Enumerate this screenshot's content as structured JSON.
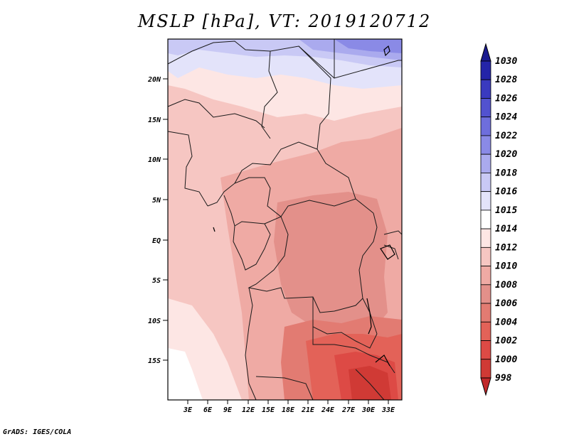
{
  "title": "MSLP [hPa], VT: 2019120712",
  "footer": "GrADS: IGES/COLA",
  "map": {
    "lon_labels": [
      "3E",
      "6E",
      "9E",
      "12E",
      "15E",
      "18E",
      "21E",
      "24E",
      "27E",
      "30E",
      "33E"
    ],
    "lat_labels": [
      "20N",
      "15N",
      "10N",
      "5N",
      "EQ",
      "5S",
      "10S",
      "15S"
    ]
  },
  "colorbar": {
    "levels": [
      "998",
      "1000",
      "1002",
      "1004",
      "1006",
      "1008",
      "1010",
      "1012",
      "1014",
      "1015",
      "1016",
      "1018",
      "1020",
      "1022",
      "1024",
      "1026",
      "1028",
      "1030"
    ],
    "colors": [
      "#c0282a",
      "#d03a35",
      "#dd4a45",
      "#e36258",
      "#e27b72",
      "#e3908a",
      "#efaaa4",
      "#f6c6c2",
      "#fde6e4",
      "#ffffff",
      "#e3e3fa",
      "#c9c9f5",
      "#aaaaee",
      "#8a8ae6",
      "#6e6edc",
      "#5252cf",
      "#3a3abf",
      "#2424a8",
      "#1a1a8f"
    ]
  },
  "colors": {
    "frame": "#000000",
    "border": "#1a1a1a"
  }
}
